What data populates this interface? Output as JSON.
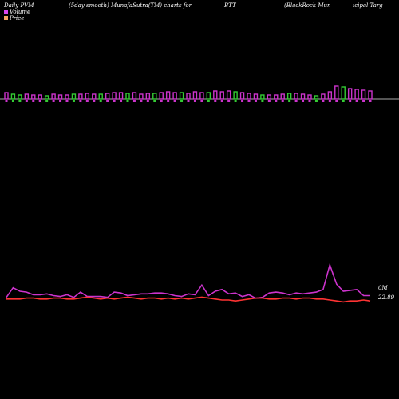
{
  "header": {
    "period": "Daily PVM",
    "method": "(5day smooth) MunafaSutra(TM) charts for",
    "symbol": "BTT",
    "company": "(BlackRock Mun",
    "company_cont": "icipal Targ"
  },
  "legend": {
    "volume_label": "Volume",
    "price_label": "Price",
    "volume_color": "#d946ef",
    "price_color": "#f4a460"
  },
  "colors": {
    "up_bar": "#cc33cc",
    "down_bar": "#33cc33",
    "volume_line": "#cc33cc",
    "price_line": "#ff3333",
    "baseline": "#aaaaaa"
  },
  "chart_data": {
    "type": "bar",
    "series": [
      {
        "name": "Volume",
        "kind": "bar",
        "values": [
          8,
          6,
          5,
          6,
          5,
          5,
          4,
          6,
          5,
          5,
          6,
          6,
          7,
          6,
          6,
          7,
          8,
          8,
          7,
          8,
          6,
          7,
          7,
          8,
          9,
          8,
          8,
          7,
          9,
          8,
          8,
          10,
          9,
          10,
          9,
          8,
          7,
          6,
          5,
          5,
          5,
          6,
          7,
          7,
          6,
          5,
          4,
          6,
          9,
          16,
          15,
          13,
          12,
          11,
          10
        ],
        "up": [
          true,
          false,
          false,
          true,
          true,
          true,
          false,
          true,
          true,
          true,
          false,
          true,
          true,
          true,
          false,
          true,
          true,
          true,
          false,
          true,
          true,
          true,
          false,
          true,
          true,
          true,
          false,
          true,
          true,
          true,
          false,
          true,
          true,
          true,
          false,
          true,
          true,
          true,
          false,
          true,
          true,
          true,
          false,
          true,
          true,
          true,
          false,
          true,
          true,
          true,
          false,
          true,
          true,
          true,
          true
        ]
      },
      {
        "name": "Volume",
        "kind": "line",
        "values": [
          3,
          14,
          10,
          9,
          6,
          6,
          7,
          5,
          4,
          6,
          3,
          9,
          4,
          4,
          4,
          3,
          9,
          8,
          5,
          6,
          7,
          7,
          8,
          8,
          7,
          5,
          4,
          7,
          6,
          17,
          5,
          10,
          12,
          7,
          8,
          4,
          6,
          2,
          3,
          8,
          9,
          8,
          6,
          8,
          7,
          8,
          9,
          12,
          40,
          18,
          10,
          11,
          12,
          5,
          5
        ]
      },
      {
        "name": "Price",
        "kind": "line",
        "values": [
          1,
          1,
          1,
          2,
          2,
          1,
          1,
          2,
          2,
          1,
          1,
          2,
          3,
          2,
          1,
          2,
          1,
          2,
          3,
          2,
          1,
          2,
          2,
          1,
          2,
          1,
          2,
          1,
          2,
          3,
          2,
          1,
          0,
          0,
          -1,
          0,
          1,
          2,
          2,
          1,
          1,
          2,
          2,
          1,
          2,
          2,
          1,
          1,
          0,
          -1,
          -2,
          -1,
          -1,
          0,
          -1
        ]
      }
    ],
    "value_labels": {
      "volume_last": "0M",
      "price_last": "22.89"
    }
  }
}
